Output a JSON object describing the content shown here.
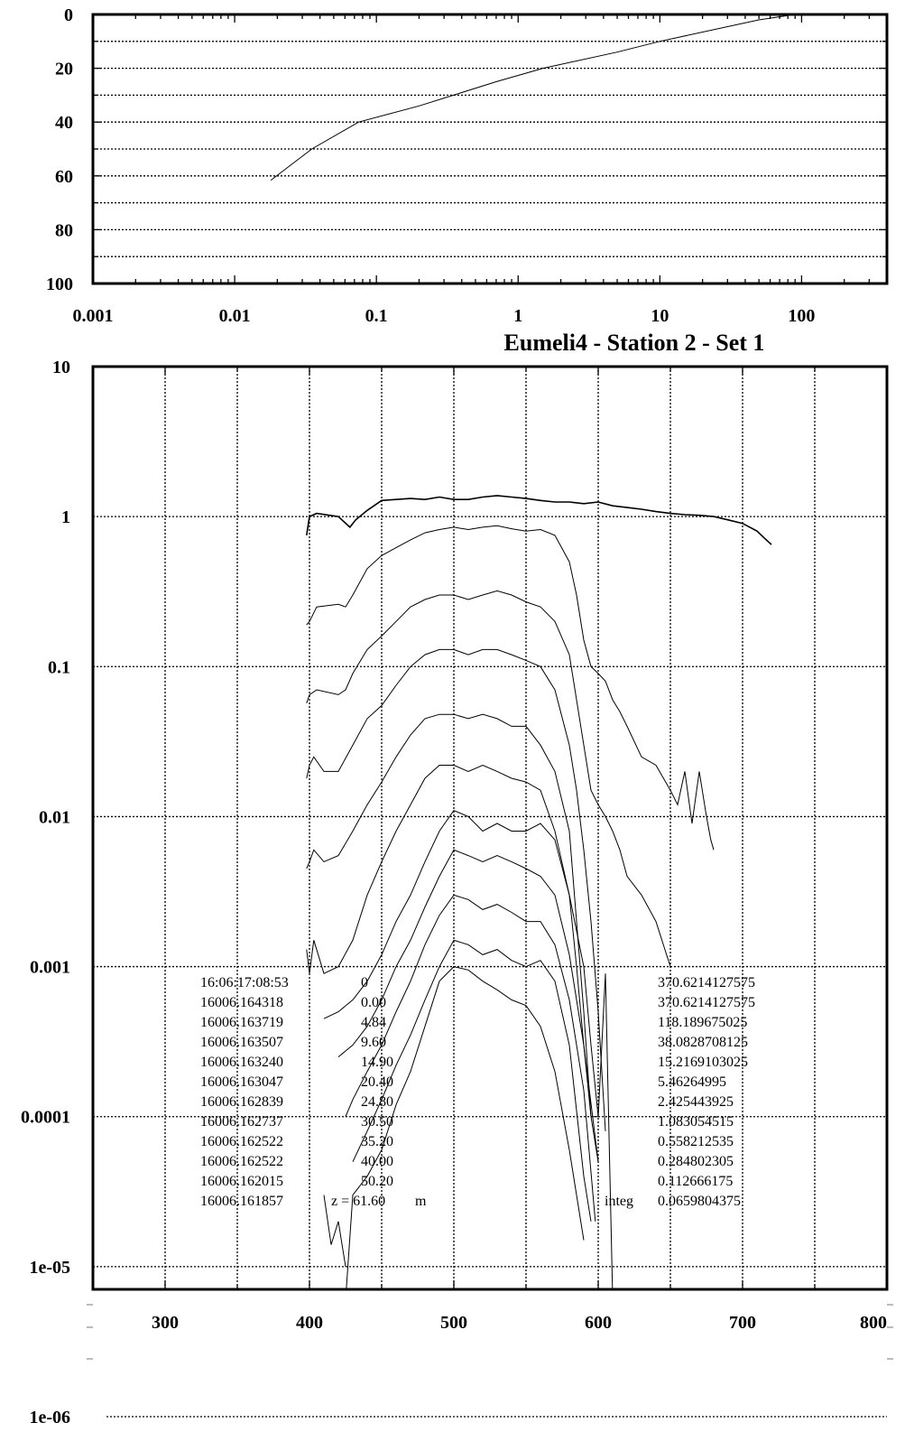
{
  "chart_data": [
    {
      "type": "line",
      "name_hint": "profile",
      "title": "",
      "xlabel": "",
      "ylabel": "",
      "x_scale": "log",
      "xlim": [
        0.001,
        400
      ],
      "ylim": [
        100,
        0
      ],
      "x_tick_labels": [
        "0.001",
        "0.01",
        "0.1",
        "1",
        "10",
        "100"
      ],
      "y_tick_labels": [
        "0",
        "20",
        "40",
        "60",
        "80",
        "100"
      ],
      "y_gridlines": [
        10,
        20,
        30,
        40,
        50,
        60,
        70,
        80,
        90
      ],
      "series": [
        {
          "x": [
            90,
            50,
            10,
            5,
            1.5,
            0.7,
            0.35,
            0.2,
            0.075,
            0.035,
            0.018
          ],
          "y": [
            0,
            2,
            10,
            14,
            20,
            25,
            30,
            34,
            40,
            50,
            61.6
          ]
        }
      ]
    },
    {
      "type": "line",
      "name_hint": "spectra",
      "title": "Eumeli4 - Station 2 - Set 1",
      "xlabel": "",
      "ylabel": "",
      "y_scale": "log",
      "xlim": [
        250,
        800
      ],
      "ylim": [
        1e-06,
        10
      ],
      "x_tick_labels": [
        "300",
        "400",
        "500",
        "600",
        "700",
        "800"
      ],
      "y_tick_labels": [
        "10",
        "1",
        "0.1",
        "0.01",
        "0.001",
        "0.0001",
        "1e-05",
        "1e-06"
      ],
      "x_gridlines": [
        300,
        350,
        400,
        450,
        500,
        550,
        600,
        650,
        700,
        750
      ],
      "series": [
        {
          "x": [
            398,
            400,
            405,
            420,
            428,
            432,
            440,
            450,
            460,
            470,
            480,
            490,
            500,
            510,
            520,
            530,
            540,
            550,
            560,
            570,
            580,
            590,
            600,
            610,
            620,
            630,
            640,
            650,
            660,
            670,
            680,
            690,
            700,
            710,
            715,
            720
          ],
          "y": [
            0.75,
            1.0,
            1.05,
            1.0,
            0.85,
            0.95,
            1.1,
            1.28,
            1.3,
            1.32,
            1.3,
            1.35,
            1.3,
            1.3,
            1.35,
            1.38,
            1.35,
            1.32,
            1.28,
            1.25,
            1.25,
            1.22,
            1.25,
            1.18,
            1.15,
            1.12,
            1.08,
            1.05,
            1.03,
            1.02,
            1.0,
            0.95,
            0.9,
            0.8,
            0.72,
            0.65
          ]
        },
        {
          "x": [
            398,
            400,
            405,
            420,
            425,
            430,
            440,
            450,
            460,
            470,
            480,
            490,
            500,
            510,
            520,
            530,
            540,
            550,
            560,
            570,
            580,
            585,
            590,
            595,
            600,
            605,
            610,
            615,
            620,
            630,
            640,
            650,
            655,
            660,
            665,
            670,
            675,
            678,
            680
          ],
          "y": [
            0.19,
            0.2,
            0.25,
            0.26,
            0.25,
            0.3,
            0.45,
            0.55,
            0.62,
            0.7,
            0.78,
            0.82,
            0.85,
            0.82,
            0.85,
            0.87,
            0.83,
            0.8,
            0.82,
            0.75,
            0.5,
            0.3,
            0.15,
            0.1,
            0.09,
            0.08,
            0.06,
            0.05,
            0.04,
            0.025,
            0.022,
            0.015,
            0.012,
            0.02,
            0.009,
            0.02,
            0.01,
            0.007,
            0.006
          ]
        },
        {
          "x": [
            398,
            400,
            405,
            420,
            425,
            430,
            440,
            450,
            460,
            470,
            480,
            490,
            500,
            510,
            520,
            530,
            540,
            550,
            560,
            570,
            580,
            585,
            590,
            595,
            600,
            605,
            610,
            615,
            620,
            630,
            640,
            650
          ],
          "y": [
            0.057,
            0.065,
            0.07,
            0.065,
            0.07,
            0.09,
            0.13,
            0.16,
            0.2,
            0.25,
            0.28,
            0.3,
            0.3,
            0.28,
            0.3,
            0.32,
            0.3,
            0.27,
            0.25,
            0.2,
            0.12,
            0.06,
            0.03,
            0.015,
            0.012,
            0.01,
            0.008,
            0.006,
            0.004,
            0.003,
            0.002,
            0.001
          ]
        },
        {
          "x": [
            398,
            400,
            403,
            410,
            420,
            430,
            440,
            450,
            460,
            470,
            480,
            490,
            500,
            510,
            520,
            530,
            540,
            550,
            560,
            570,
            580,
            585,
            590,
            595,
            600,
            605
          ],
          "y": [
            0.018,
            0.022,
            0.025,
            0.02,
            0.02,
            0.03,
            0.045,
            0.055,
            0.075,
            0.1,
            0.12,
            0.13,
            0.13,
            0.12,
            0.13,
            0.13,
            0.12,
            0.11,
            0.1,
            0.07,
            0.03,
            0.015,
            0.006,
            0.002,
            0.0005,
            8e-05
          ]
        },
        {
          "x": [
            398,
            400,
            403,
            410,
            420,
            430,
            440,
            450,
            460,
            470,
            480,
            490,
            500,
            510,
            520,
            530,
            540,
            550,
            560,
            570,
            580,
            585,
            590,
            595,
            600,
            605,
            610
          ],
          "y": [
            0.0045,
            0.005,
            0.006,
            0.005,
            0.0055,
            0.008,
            0.012,
            0.017,
            0.025,
            0.035,
            0.045,
            0.048,
            0.048,
            0.045,
            0.048,
            0.045,
            0.04,
            0.04,
            0.03,
            0.02,
            0.008,
            0.002,
            0.0005,
            0.0001,
            0.0001,
            0.0009,
            6.2e-06
          ]
        },
        {
          "x": [
            398,
            400,
            403,
            410,
            420,
            430,
            440,
            450,
            460,
            470,
            480,
            490,
            500,
            510,
            520,
            530,
            540,
            550,
            560,
            570,
            580,
            585,
            590,
            595,
            600
          ],
          "y": [
            0.0013,
            0.0009,
            0.0015,
            0.0009,
            0.001,
            0.0015,
            0.003,
            0.005,
            0.008,
            0.012,
            0.018,
            0.022,
            0.022,
            0.02,
            0.022,
            0.02,
            0.018,
            0.017,
            0.015,
            0.008,
            0.003,
            0.001,
            0.0003,
            0.0001,
            5e-05
          ]
        },
        {
          "x": [
            410,
            420,
            430,
            440,
            450,
            460,
            470,
            480,
            490,
            500,
            510,
            520,
            530,
            540,
            550,
            560,
            570,
            580,
            590,
            595,
            600
          ],
          "y": [
            0.00045,
            0.0005,
            0.0006,
            0.0008,
            0.0012,
            0.002,
            0.003,
            0.005,
            0.008,
            0.011,
            0.01,
            0.008,
            0.009,
            0.008,
            0.008,
            0.009,
            0.007,
            0.003,
            0.001,
            0.0003,
            0.0001
          ]
        },
        {
          "x": [
            420,
            430,
            440,
            450,
            460,
            470,
            480,
            490,
            500,
            510,
            520,
            530,
            540,
            550,
            560,
            570,
            580,
            590,
            600
          ],
          "y": [
            0.00025,
            0.0003,
            0.0004,
            0.0006,
            0.001,
            0.0015,
            0.0025,
            0.004,
            0.006,
            0.0055,
            0.005,
            0.0055,
            0.005,
            0.0045,
            0.004,
            0.003,
            0.0012,
            0.0003,
            5e-05
          ]
        },
        {
          "x": [
            425,
            430,
            440,
            450,
            460,
            470,
            480,
            490,
            500,
            510,
            520,
            530,
            540,
            550,
            560,
            570,
            580,
            590,
            598
          ],
          "y": [
            0.0001,
            0.00013,
            0.0002,
            0.0003,
            0.0005,
            0.0008,
            0.0014,
            0.0022,
            0.003,
            0.0028,
            0.0024,
            0.0026,
            0.0023,
            0.002,
            0.002,
            0.0014,
            0.0006,
            0.00015,
            2e-05
          ]
        },
        {
          "x": [
            430,
            440,
            450,
            460,
            470,
            480,
            490,
            500,
            510,
            520,
            530,
            540,
            550,
            560,
            570,
            580,
            590,
            595
          ],
          "y": [
            5e-05,
            8e-05,
            0.00013,
            0.00022,
            0.00035,
            0.0006,
            0.001,
            0.0015,
            0.0014,
            0.0012,
            0.0013,
            0.0011,
            0.001,
            0.0011,
            0.0008,
            0.0003,
            4e-05,
            2e-05
          ]
        },
        {
          "x": [
            425,
            430,
            440,
            450,
            460,
            470,
            480,
            490,
            500,
            510,
            520,
            530,
            540,
            550,
            560,
            570,
            580,
            590
          ],
          "y": [
            6e-06,
            3e-05,
            4e-05,
            6e-05,
            0.00012,
            0.0002,
            0.0004,
            0.0008,
            0.001,
            0.00095,
            0.0008,
            0.0007,
            0.0006,
            0.00055,
            0.0004,
            0.0002,
            6e-05,
            1.5e-05
          ]
        },
        {
          "x": [
            410,
            415,
            420,
            425
          ],
          "y": [
            3e-05,
            1.4e-05,
            2e-05,
            1e-05
          ]
        }
      ],
      "annotations": {
        "header_row": [
          "16:06:17:08:53",
          "0",
          "370.6214127575"
        ],
        "rows": [
          [
            "16006.164318",
            "0.00",
            "370.6214127575"
          ],
          [
            "16006.163719",
            "4.84",
            "118.189675025"
          ],
          [
            "16006.163507",
            "9.60",
            "38.0828708125"
          ],
          [
            "16006.163240",
            "14.90",
            "15.2169103025"
          ],
          [
            "16006.163047",
            "20.40",
            "5.46264995"
          ],
          [
            "16006.162839",
            "24.80",
            "2.425443925"
          ],
          [
            "16006.162737",
            "30.50",
            "1.083054515"
          ],
          [
            "16006.162522",
            "35.20",
            "0.558212535"
          ],
          [
            "16006.162522",
            "40.00",
            "0.284802305"
          ],
          [
            "16006.162015",
            "50.20",
            "0.112666175"
          ]
        ],
        "last_row": {
          "id": "16006.161857",
          "depth": "z = 61.60",
          "unit": "m",
          "integ_label": "integ",
          "integ_value": "0.0659804375"
        }
      }
    }
  ]
}
